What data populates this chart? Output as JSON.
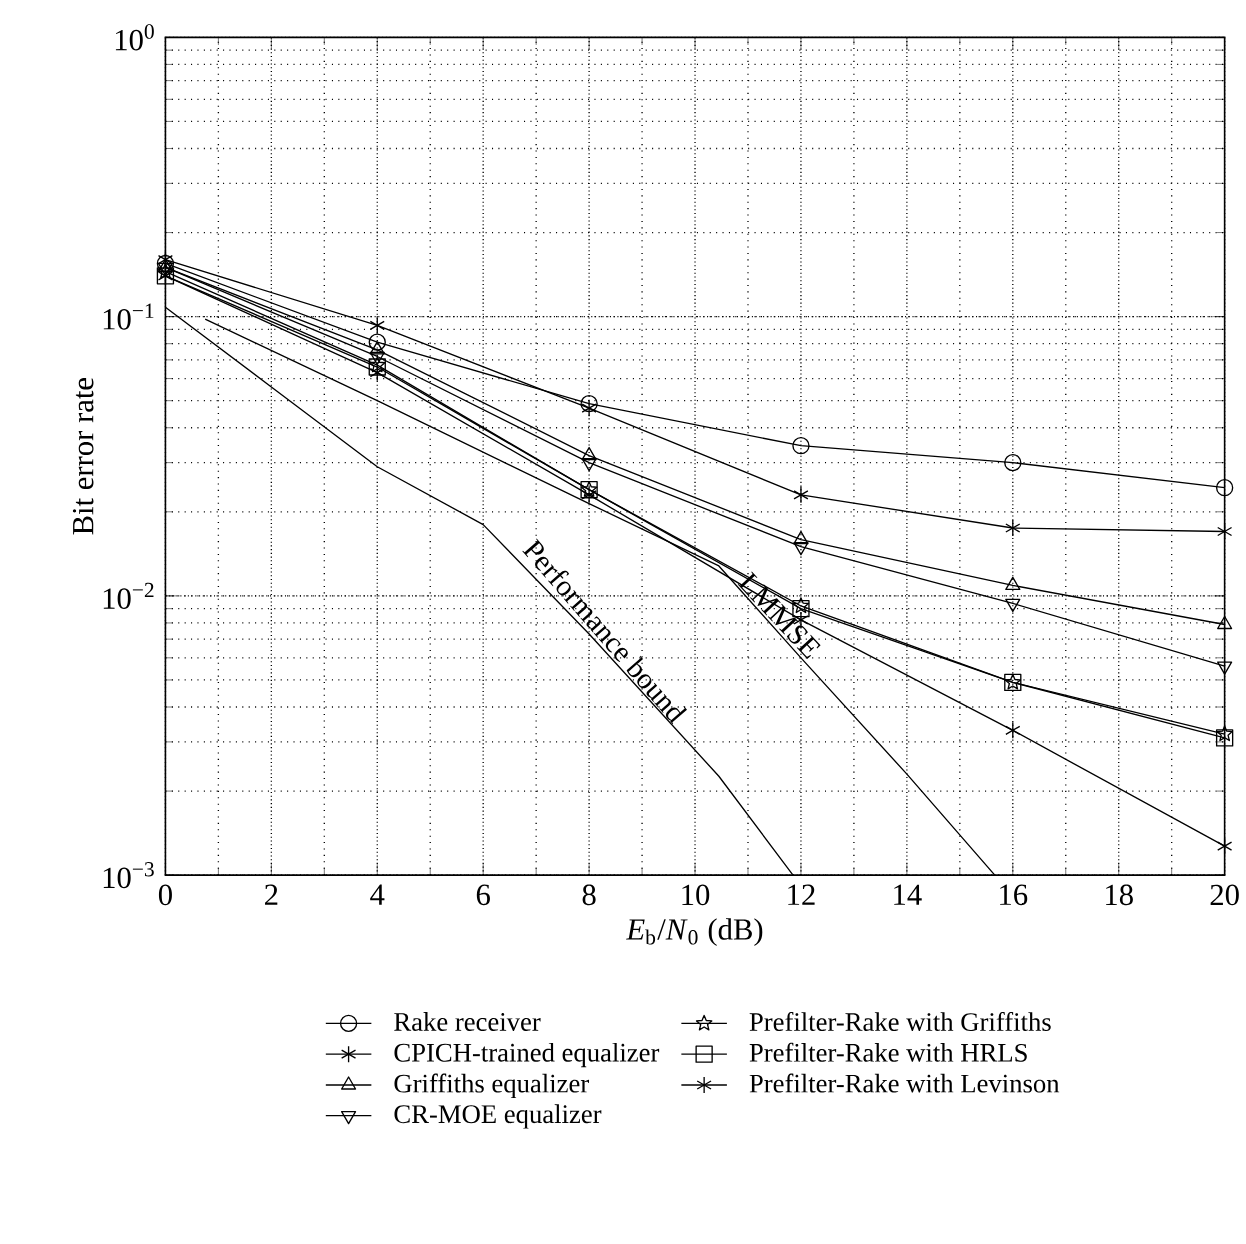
{
  "chart_data": {
    "type": "line",
    "xlabel": "*E*$_{b}$/*N*$_{0}$ (dB)",
    "ylabel": "Bit error rate",
    "x": [
      0,
      4,
      8,
      12,
      16,
      20
    ],
    "series": [
      {
        "name": "Rake receiver",
        "color": "#000000",
        "marker": "circle",
        "values": [
          0.155,
          0.081,
          0.0488,
          0.0345,
          0.03,
          0.0244
        ]
      },
      {
        "name": "CPICH-trained equalizer",
        "color": "#000000",
        "marker": "cross",
        "values": [
          0.16,
          0.093,
          0.047,
          0.023,
          0.0175,
          0.017
        ]
      },
      {
        "name": "Griffiths equalizer",
        "color": "#000000",
        "marker": "triangle",
        "values": [
          0.15,
          0.076,
          0.0318,
          0.0159,
          0.0109,
          0.0079
        ]
      },
      {
        "name": "CR-MOE equalizer",
        "color": "#000000",
        "marker": "triangle-down",
        "values": [
          0.15,
          0.072,
          0.03,
          0.015,
          0.0094,
          0.0056
        ]
      },
      {
        "name": "Prefilter-Rake with Griffiths",
        "color": "#000000",
        "marker": "star",
        "values": [
          0.145,
          0.067,
          0.024,
          0.0092,
          0.0049,
          0.0032
        ]
      },
      {
        "name": "Prefilter-Rake with HRLS",
        "color": "#000000",
        "marker": "square",
        "values": [
          0.14,
          0.066,
          0.024,
          0.009,
          0.0049,
          0.0031
        ]
      },
      {
        "name": "Prefilter-Rake with Levinson",
        "color": "#000000",
        "marker": "cross",
        "values": [
          0.14,
          0.063,
          0.023,
          0.0082,
          0.0033,
          0.00127
        ]
      },
      {
        "color": "#000000",
        "marker": "none",
        "x": [
          0,
          2,
          4,
          6,
          8,
          10.45,
          11.85
        ],
        "values": [
          0.108,
          0.056,
          0.029,
          0.018,
          0.0073,
          0.00226,
          0.001
        ]
      },
      {
        "color": "#000000",
        "marker": "none",
        "x": [
          0.75,
          4,
          8,
          10.45,
          12,
          14,
          15.66
        ],
        "values": [
          0.098,
          0.05,
          0.0214,
          0.0128,
          0.006,
          0.0023,
          0.001
        ]
      }
    ],
    "annotations": [
      "Performance bound",
      "LMMSE"
    ],
    "xlim": [
      0,
      20
    ],
    "ylim": [
      0.001,
      1
    ],
    "xticks": [
      0,
      2,
      4,
      6,
      8,
      10,
      12,
      14,
      16,
      18,
      20
    ],
    "yticks": [
      {
        "value": 0.001,
        "label": "10$^{−3}$"
      },
      {
        "value": 0.01,
        "label": "10$^{−2}$"
      },
      {
        "value": 0.1,
        "label": "10$^{−1}$"
      },
      {
        "value": 1,
        "label": "10$^{0}$"
      }
    ],
    "log": "y",
    "grid": true,
    "legend": "bottom"
  }
}
